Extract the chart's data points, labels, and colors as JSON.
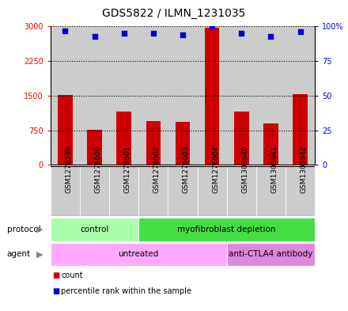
{
  "title": "GDS5822 / ILMN_1231035",
  "samples": [
    "GSM1276599",
    "GSM1276600",
    "GSM1276601",
    "GSM1276602",
    "GSM1276603",
    "GSM1276604",
    "GSM1303940",
    "GSM1303941",
    "GSM1303942"
  ],
  "counts": [
    1520,
    760,
    1150,
    950,
    930,
    2980,
    1150,
    900,
    1540
  ],
  "percentile_ranks": [
    97,
    93,
    95,
    95,
    94,
    100,
    95,
    93,
    96
  ],
  "ylim_left": [
    0,
    3000
  ],
  "ylim_right": [
    0,
    100
  ],
  "yticks_left": [
    0,
    750,
    1500,
    2250,
    3000
  ],
  "ytick_labels_left": [
    "0",
    "750",
    "1500",
    "2250",
    "3000"
  ],
  "yticks_right": [
    0,
    25,
    50,
    75,
    100
  ],
  "ytick_labels_right": [
    "0",
    "25",
    "50",
    "75",
    "100%"
  ],
  "bar_color": "#cc0000",
  "dot_color": "#0000cc",
  "protocol_groups": [
    {
      "label": "control",
      "start": 0,
      "end": 3,
      "color": "#aaffaa"
    },
    {
      "label": "myofibroblast depletion",
      "start": 3,
      "end": 9,
      "color": "#44dd44"
    }
  ],
  "agent_groups": [
    {
      "label": "untreated",
      "start": 0,
      "end": 6,
      "color": "#ffaaff"
    },
    {
      "label": "anti-CTLA4 antibody",
      "start": 6,
      "end": 9,
      "color": "#dd88dd"
    }
  ],
  "legend_items": [
    {
      "color": "#cc0000",
      "label": "count"
    },
    {
      "color": "#0000cc",
      "label": "percentile rank within the sample"
    }
  ],
  "cell_bg_color": "#cccccc",
  "cell_border_color": "#ffffff"
}
